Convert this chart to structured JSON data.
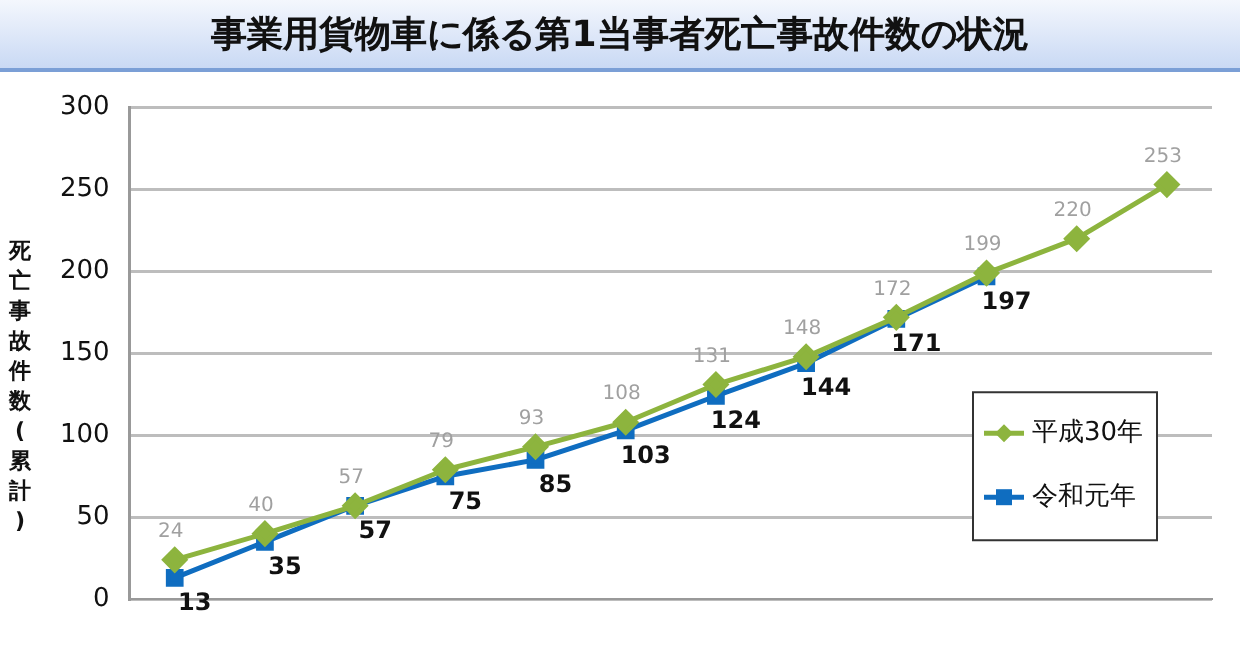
{
  "chart_data": {
    "type": "line",
    "title": "事業用貨物車に係る第1当事者死亡事故件数の状況",
    "ylabel": "死亡事故件数(累計)",
    "categories": [
      null,
      null,
      null,
      null,
      null,
      null,
      null,
      null,
      null,
      null,
      null,
      null
    ],
    "series": [
      {
        "name": "平成30年",
        "color": "#8db43e",
        "marker": "diamond",
        "values": [
          24,
          40,
          57,
          79,
          93,
          108,
          131,
          148,
          172,
          199,
          220,
          253
        ]
      },
      {
        "name": "令和元年",
        "color": "#0f6dc0",
        "marker": "square",
        "values": [
          13,
          35,
          57,
          75,
          85,
          103,
          124,
          144,
          171,
          197,
          null,
          null
        ]
      }
    ],
    "ylim": [
      0,
      300
    ],
    "yticks": [
      0,
      50,
      100,
      150,
      200,
      250,
      300
    ],
    "grid": "y",
    "legend": "bottom right",
    "data_labels": true
  }
}
